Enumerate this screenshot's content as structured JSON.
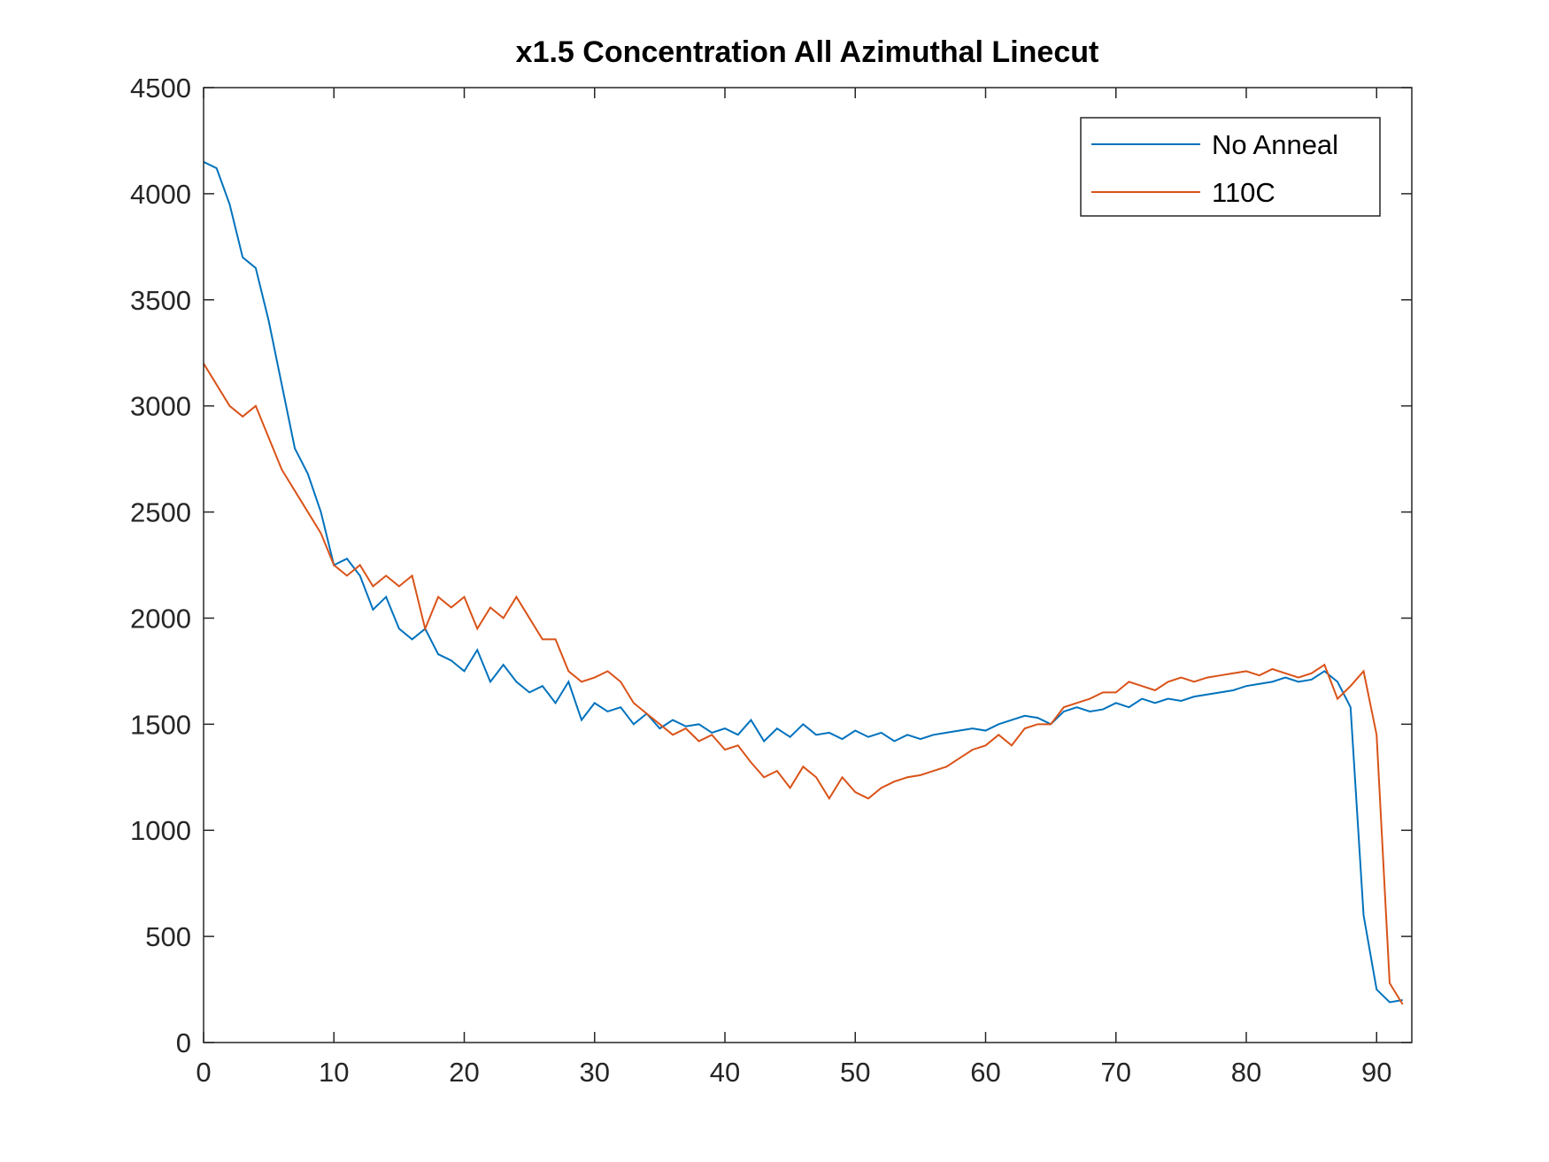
{
  "chart_data": {
    "type": "line",
    "title": "x1.5 Concentration All Azimuthal Linecut",
    "x": [
      0,
      1,
      2,
      3,
      4,
      5,
      6,
      7,
      8,
      9,
      10,
      11,
      12,
      13,
      14,
      15,
      16,
      17,
      18,
      19,
      20,
      21,
      22,
      23,
      24,
      25,
      26,
      27,
      28,
      29,
      30,
      31,
      32,
      33,
      34,
      35,
      36,
      37,
      38,
      39,
      40,
      41,
      42,
      43,
      44,
      45,
      46,
      47,
      48,
      49,
      50,
      51,
      52,
      53,
      54,
      55,
      56,
      57,
      58,
      59,
      60,
      61,
      62,
      63,
      64,
      65,
      66,
      67,
      68,
      69,
      70,
      71,
      72,
      73,
      74,
      75,
      76,
      77,
      78,
      79,
      80,
      81,
      82,
      83,
      84,
      85,
      86,
      87,
      88,
      89,
      90,
      91,
      92
    ],
    "series": [
      {
        "name": "No Anneal",
        "color": "#0072bd",
        "values": [
          4150,
          4120,
          3950,
          3700,
          3650,
          3400,
          3100,
          2800,
          2680,
          2500,
          2250,
          2280,
          2200,
          2040,
          2100,
          1950,
          1900,
          1950,
          1830,
          1800,
          1750,
          1850,
          1700,
          1780,
          1700,
          1650,
          1680,
          1600,
          1700,
          1520,
          1600,
          1560,
          1580,
          1500,
          1550,
          1480,
          1520,
          1490,
          1500,
          1460,
          1480,
          1450,
          1520,
          1420,
          1480,
          1440,
          1500,
          1450,
          1460,
          1430,
          1470,
          1440,
          1460,
          1420,
          1450,
          1430,
          1450,
          1460,
          1470,
          1480,
          1470,
          1500,
          1520,
          1540,
          1530,
          1500,
          1560,
          1580,
          1560,
          1570,
          1600,
          1580,
          1620,
          1600,
          1620,
          1610,
          1630,
          1640,
          1650,
          1660,
          1680,
          1690,
          1700,
          1720,
          1700,
          1710,
          1750,
          1700,
          1580,
          600,
          250,
          190,
          200
        ]
      },
      {
        "name": "110C",
        "color": "#d95319",
        "values": [
          3200,
          3100,
          3000,
          2950,
          3000,
          2850,
          2700,
          2600,
          2500,
          2400,
          2250,
          2200,
          2250,
          2150,
          2200,
          2150,
          2200,
          1950,
          2100,
          2050,
          2100,
          1950,
          2050,
          2000,
          2100,
          2000,
          1900,
          1900,
          1750,
          1700,
          1720,
          1750,
          1700,
          1600,
          1550,
          1500,
          1450,
          1480,
          1420,
          1450,
          1380,
          1400,
          1320,
          1250,
          1280,
          1200,
          1300,
          1250,
          1150,
          1250,
          1180,
          1150,
          1200,
          1230,
          1250,
          1260,
          1280,
          1300,
          1340,
          1380,
          1400,
          1450,
          1400,
          1480,
          1500,
          1500,
          1580,
          1600,
          1620,
          1650,
          1650,
          1700,
          1680,
          1660,
          1700,
          1720,
          1700,
          1720,
          1730,
          1740,
          1750,
          1730,
          1760,
          1740,
          1720,
          1740,
          1780,
          1620,
          1680,
          1750,
          1450,
          280,
          180
        ]
      }
    ],
    "xlim": [
      0,
      92.7
    ],
    "xticks": [
      0,
      10,
      20,
      30,
      40,
      50,
      60,
      70,
      80,
      90
    ],
    "ylim": [
      0,
      4500
    ],
    "yticks": [
      0,
      500,
      1000,
      1500,
      2000,
      2500,
      3000,
      3500,
      4000,
      4500
    ],
    "legend": "northeast"
  }
}
